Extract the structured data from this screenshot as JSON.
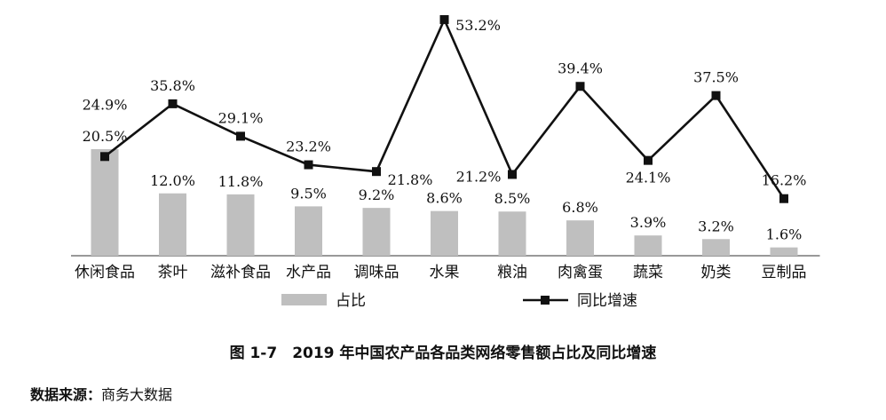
{
  "chart_data": {
    "type": "bar",
    "categories": [
      "休闲食品",
      "茶叶",
      "滋补食品",
      "水产品",
      "调味品",
      "水果",
      "粮油",
      "肉禽蛋",
      "蔬菜",
      "奶类",
      "豆制品"
    ],
    "series": [
      {
        "name": "占比",
        "type": "bar",
        "values": [
          20.5,
          12.0,
          11.8,
          9.5,
          9.2,
          8.6,
          8.5,
          6.8,
          3.9,
          3.2,
          1.6
        ],
        "labels": [
          "20.5%",
          "12.0%",
          "11.8%",
          "9.5%",
          "9.2%",
          "8.6%",
          "8.5%",
          "6.8%",
          "3.9%",
          "3.2%",
          "1.6%"
        ],
        "color": "#bfbfbf"
      },
      {
        "name": "同比增速",
        "type": "line",
        "values": [
          24.9,
          35.8,
          29.1,
          23.2,
          21.8,
          53.2,
          21.2,
          39.4,
          24.1,
          37.5,
          16.2
        ],
        "labels": [
          "24.9%",
          "35.8%",
          "29.1%",
          "23.2%",
          "21.8%",
          "53.2%",
          "21.2%",
          "39.4%",
          "24.1%",
          "37.5%",
          "16.2%"
        ],
        "color": "#111111",
        "marker": "square"
      }
    ],
    "bar_ylim": [
      0,
      35
    ],
    "line_ylim": [
      0,
      55
    ],
    "grid": false,
    "legend": "bottom",
    "title": "图 1-7　2019 年中国农产品各品类网络零售额占比及同比增速"
  },
  "source": {
    "label": "数据来源：",
    "value": "商务大数据"
  }
}
